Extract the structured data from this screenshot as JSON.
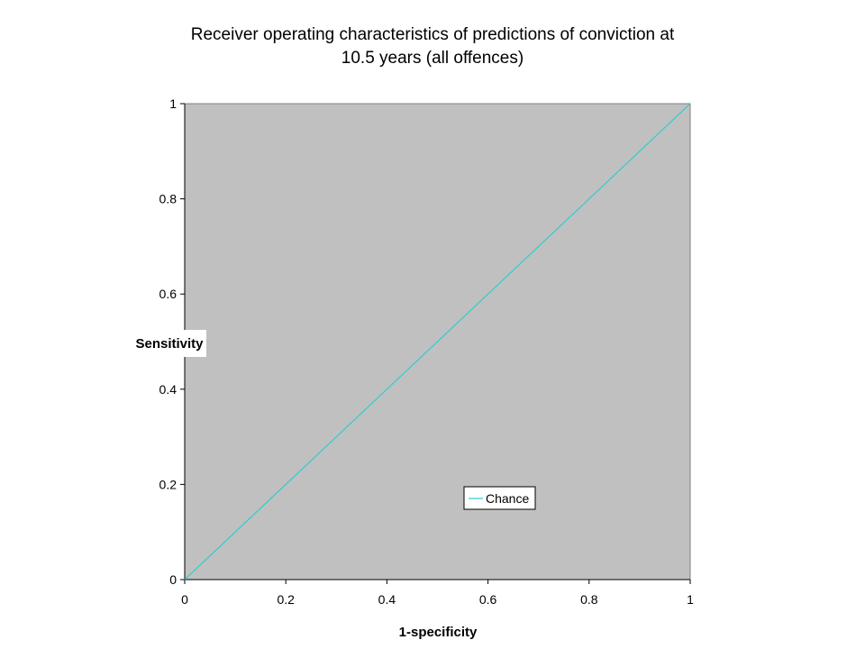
{
  "chart_data": {
    "type": "line",
    "title_lines": [
      "Receiver operating characteristics of predictions of conviction at",
      "10.5 years (all offences)"
    ],
    "xlabel": "1-specificity",
    "ylabel": "Sensitivity",
    "xlim": [
      0,
      1
    ],
    "ylim": [
      0,
      1
    ],
    "x_ticks": [
      0,
      0.2,
      0.4,
      0.6,
      0.8,
      1
    ],
    "y_ticks": [
      0,
      0.2,
      0.4,
      0.6,
      0.8,
      1
    ],
    "x_tick_labels": [
      "0",
      "0.2",
      "0.4",
      "0.6",
      "0.8",
      "1"
    ],
    "y_tick_labels": [
      "0",
      "0.2",
      "0.4",
      "0.6",
      "0.8",
      "1"
    ],
    "grid": false,
    "plot_background": "#c0c0c0",
    "legend_position": "lower-right",
    "series": [
      {
        "name": "Chance",
        "color": "#33cccc",
        "points": [
          [
            0,
            0
          ],
          [
            1,
            1
          ]
        ]
      }
    ]
  }
}
